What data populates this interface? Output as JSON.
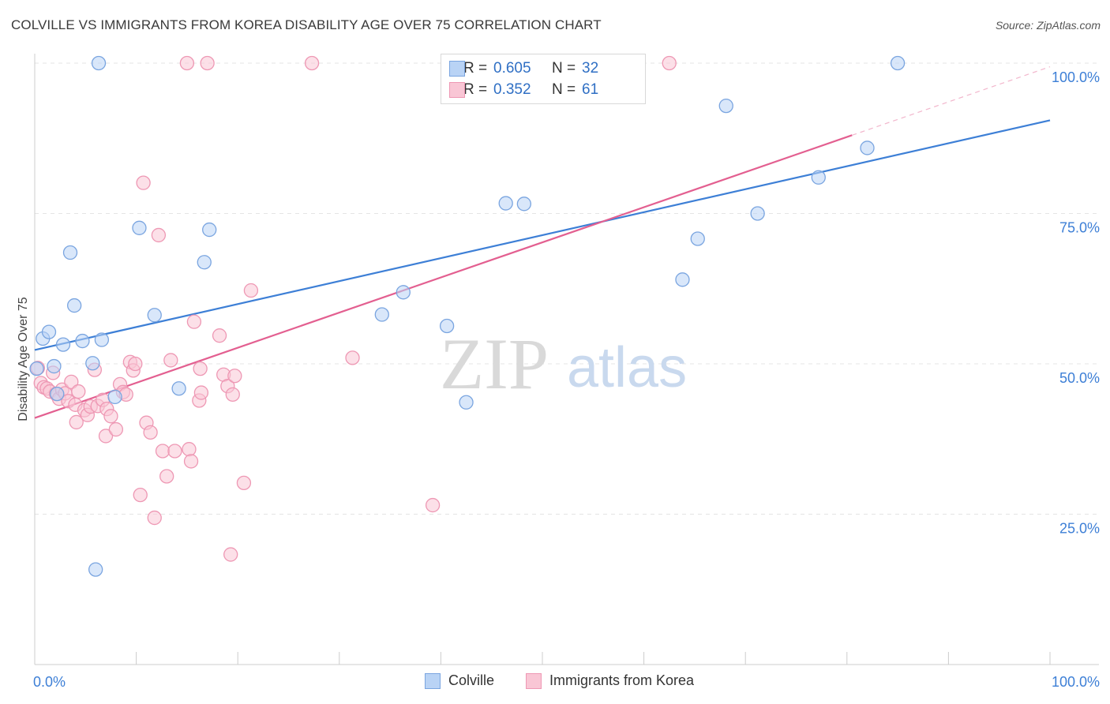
{
  "title": "COLVILLE VS IMMIGRANTS FROM KOREA DISABILITY AGE OVER 75 CORRELATION CHART",
  "source": "Source: ZipAtlas.com",
  "watermark": {
    "zip": "ZIP",
    "atlas": "atlas"
  },
  "legend": {
    "r_label": "R =",
    "n_label": "N =",
    "series": [
      {
        "name": "Colville",
        "r": "0.605",
        "n": "32",
        "fill": "#b9d3f5",
        "stroke": "#7aa5e0"
      },
      {
        "name": "Immigrants from Korea",
        "r": "0.352",
        "n": "61",
        "fill": "#f9c6d5",
        "stroke": "#ee98b4"
      }
    ]
  },
  "chart_data": {
    "type": "scatter",
    "title": "COLVILLE VS IMMIGRANTS FROM KOREA DISABILITY AGE OVER 75 CORRELATION CHART",
    "xlabel": "",
    "ylabel": "Disability Age Over 75",
    "xlim": [
      0,
      100
    ],
    "ylim": [
      0,
      100
    ],
    "x_tick_labels": [
      "0.0%",
      "100.0%"
    ],
    "y_tick_labels": [
      {
        "value": 25,
        "label": "25.0%"
      },
      {
        "value": 50,
        "label": "50.0%"
      },
      {
        "value": 75,
        "label": "75.0%"
      },
      {
        "value": 100,
        "label": "100.0%"
      }
    ],
    "grid": true,
    "series": [
      {
        "name": "Colville",
        "color": "#3d7fd6",
        "trend": {
          "x": [
            0,
            100
          ],
          "y": [
            52.3,
            90.5
          ],
          "solid_to": 100
        },
        "points": [
          [
            0.2,
            49.2
          ],
          [
            0.8,
            54.2
          ],
          [
            1.4,
            55.3
          ],
          [
            1.9,
            49.6
          ],
          [
            2.2,
            45.0
          ],
          [
            2.8,
            53.2
          ],
          [
            3.5,
            68.5
          ],
          [
            3.9,
            59.7
          ],
          [
            4.7,
            53.8
          ],
          [
            5.7,
            50.1
          ],
          [
            6.3,
            100
          ],
          [
            6.6,
            54.0
          ],
          [
            6.0,
            15.8
          ],
          [
            7.9,
            44.5
          ],
          [
            10.3,
            72.6
          ],
          [
            11.8,
            58.1
          ],
          [
            14.2,
            45.9
          ],
          [
            16.7,
            66.9
          ],
          [
            17.2,
            72.3
          ],
          [
            34.2,
            58.2
          ],
          [
            36.3,
            61.9
          ],
          [
            40.6,
            56.3
          ],
          [
            42.5,
            43.6
          ],
          [
            46.4,
            76.7
          ],
          [
            48.2,
            76.6
          ],
          [
            63.8,
            64.0
          ],
          [
            65.3,
            70.8
          ],
          [
            68.1,
            92.9
          ],
          [
            71.2,
            75.0
          ],
          [
            77.2,
            81.0
          ],
          [
            82.0,
            85.9
          ],
          [
            85.0,
            100
          ]
        ]
      },
      {
        "name": "Immigrants from Korea",
        "color": "#e35f90",
        "trend": {
          "x": [
            0,
            100
          ],
          "y": [
            41.0,
            99.4
          ],
          "solid_to": 80.5
        },
        "points": [
          [
            0.3,
            49.3
          ],
          [
            0.6,
            46.8
          ],
          [
            0.9,
            46.1
          ],
          [
            1.2,
            45.9
          ],
          [
            1.5,
            45.4
          ],
          [
            1.8,
            48.5
          ],
          [
            2.1,
            45.0
          ],
          [
            2.4,
            44.2
          ],
          [
            2.7,
            45.7
          ],
          [
            3.0,
            45.1
          ],
          [
            3.3,
            43.8
          ],
          [
            3.6,
            47.0
          ],
          [
            4.0,
            43.2
          ],
          [
            4.3,
            45.4
          ],
          [
            4.1,
            40.3
          ],
          [
            4.9,
            42.3
          ],
          [
            5.2,
            41.5
          ],
          [
            5.5,
            42.9
          ],
          [
            5.9,
            49.0
          ],
          [
            6.2,
            43.0
          ],
          [
            6.7,
            44.0
          ],
          [
            7.1,
            42.5
          ],
          [
            7.0,
            38.0
          ],
          [
            7.5,
            41.3
          ],
          [
            8.0,
            39.1
          ],
          [
            8.4,
            46.6
          ],
          [
            8.7,
            45.3
          ],
          [
            9.0,
            44.9
          ],
          [
            9.4,
            50.3
          ],
          [
            9.7,
            48.9
          ],
          [
            9.9,
            50.0
          ],
          [
            10.4,
            28.2
          ],
          [
            10.7,
            80.1
          ],
          [
            11.0,
            40.2
          ],
          [
            11.4,
            38.6
          ],
          [
            11.8,
            24.4
          ],
          [
            12.2,
            71.4
          ],
          [
            12.6,
            35.5
          ],
          [
            13.0,
            31.3
          ],
          [
            13.4,
            50.6
          ],
          [
            13.8,
            35.5
          ],
          [
            15.2,
            35.8
          ],
          [
            15.4,
            33.8
          ],
          [
            15.7,
            57.0
          ],
          [
            16.2,
            43.9
          ],
          [
            16.4,
            45.2
          ],
          [
            18.2,
            54.7
          ],
          [
            18.6,
            48.2
          ],
          [
            19.0,
            46.3
          ],
          [
            19.3,
            18.3
          ],
          [
            19.5,
            44.9
          ],
          [
            19.7,
            48.0
          ],
          [
            20.6,
            30.2
          ],
          [
            21.3,
            62.2
          ],
          [
            15.0,
            100
          ],
          [
            17.0,
            100
          ],
          [
            27.3,
            100
          ],
          [
            31.3,
            51.0
          ],
          [
            39.2,
            26.5
          ],
          [
            62.5,
            100
          ],
          [
            16.3,
            49.2
          ]
        ]
      }
    ]
  }
}
